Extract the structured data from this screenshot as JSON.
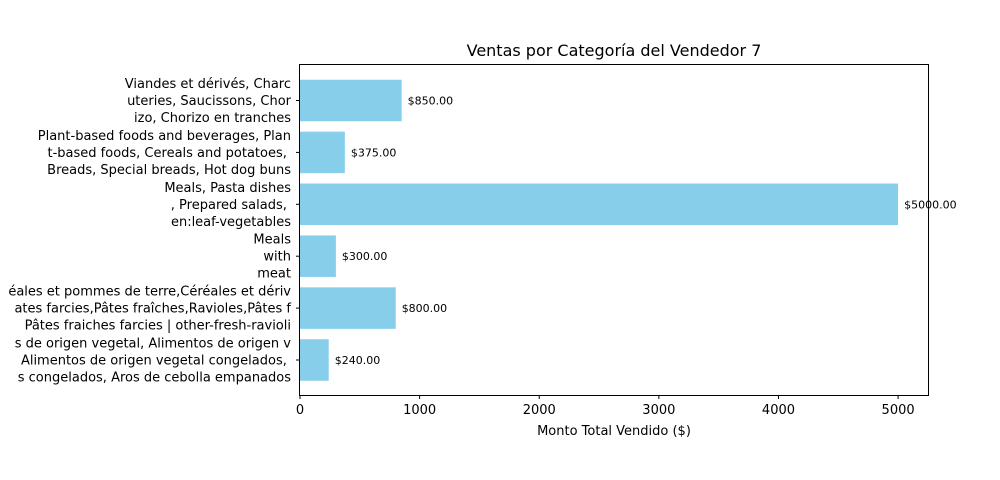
{
  "chart_data": {
    "type": "bar",
    "orientation": "horizontal",
    "title": "Ventas por Categoría del Vendedor 7",
    "xlabel": "Monto Total Vendido ($)",
    "ylabel": "",
    "xlim": [
      0,
      5250
    ],
    "xticks": [
      0,
      1000,
      2000,
      3000,
      4000,
      5000
    ],
    "xtick_labels": [
      "0",
      "1000",
      "2000",
      "3000",
      "4000",
      "5000"
    ],
    "grid": false,
    "bar_color": "#87ceeb",
    "categories": [
      {
        "lines": [
          "Viandes et dérivés, Charc",
          "uteries, Saucissons, Chor",
          "izo, Chorizo en tranches"
        ],
        "value": 850,
        "label": "$850.00"
      },
      {
        "lines": [
          "Plant-based foods and beverages, Plan",
          "t-based foods, Cereals and potatoes, ",
          "Breads, Special breads, Hot dog buns"
        ],
        "value": 375,
        "label": "$375.00"
      },
      {
        "lines": [
          "Meals, Pasta dishes",
          ", Prepared salads, ",
          "en:leaf-vegetables"
        ],
        "value": 5000,
        "label": "$5000.00"
      },
      {
        "lines": [
          "Meals",
          "with",
          "meat"
        ],
        "value": 300,
        "label": "$300.00"
      },
      {
        "lines": [
          "éales et pommes de terre,Céréales et dériv",
          "ates farcies,Pâtes fraîches,Ravioles,Pâtes f",
          "Pâtes fraiches farcies | other-fresh-ravioli"
        ],
        "value": 800,
        "label": "$800.00"
      },
      {
        "lines": [
          "s de origen vegetal, Alimentos de origen v",
          "Alimentos de origen vegetal congelados, ",
          "s congelados, Aros de cebolla empanados"
        ],
        "value": 240,
        "label": "$240.00"
      }
    ]
  }
}
